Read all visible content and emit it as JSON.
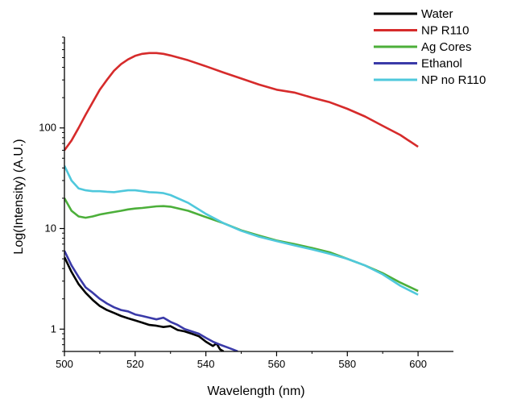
{
  "chart_data": {
    "type": "line",
    "title": "",
    "xlabel": "Wavelength (nm)",
    "ylabel": "Log(Intensity) (A.U.)",
    "xlim": [
      500,
      610
    ],
    "ylim": [
      0.6,
      800
    ],
    "yscale": "log",
    "grid": false,
    "legend_position": "top-right",
    "x_ticks": [
      500,
      520,
      540,
      560,
      580,
      600
    ],
    "y_ticks": [
      1,
      10,
      100
    ],
    "x_tick_labels": [
      "500",
      "520",
      "540",
      "560",
      "580",
      "600"
    ],
    "y_tick_labels": [
      "1",
      "10",
      "100"
    ],
    "series": [
      {
        "name": "Water",
        "color": "#000000",
        "x": [
          500,
          502,
          504,
          506,
          508,
          510,
          512,
          514,
          516,
          518,
          520,
          522,
          524,
          526,
          528,
          530,
          532,
          534,
          536,
          538,
          540,
          542,
          543,
          544,
          545
        ],
        "y": [
          5.2,
          3.7,
          2.8,
          2.3,
          1.95,
          1.7,
          1.55,
          1.45,
          1.35,
          1.28,
          1.22,
          1.16,
          1.1,
          1.08,
          1.05,
          1.07,
          0.98,
          0.95,
          0.9,
          0.85,
          0.75,
          0.68,
          0.72,
          0.63,
          0.6
        ]
      },
      {
        "name": "NP R110",
        "color": "#d62b2b",
        "x": [
          500,
          502,
          504,
          506,
          508,
          510,
          512,
          514,
          516,
          518,
          520,
          522,
          524,
          526,
          528,
          530,
          535,
          540,
          545,
          550,
          555,
          560,
          565,
          570,
          575,
          580,
          585,
          590,
          595,
          600
        ],
        "y": [
          60,
          75,
          100,
          135,
          180,
          240,
          300,
          370,
          430,
          480,
          520,
          545,
          555,
          555,
          545,
          525,
          470,
          410,
          355,
          310,
          270,
          240,
          225,
          200,
          180,
          155,
          130,
          105,
          85,
          65
        ]
      },
      {
        "name": "Ag Cores",
        "color": "#4caf3a",
        "x": [
          500,
          502,
          504,
          506,
          508,
          510,
          512,
          514,
          516,
          518,
          520,
          522,
          524,
          526,
          528,
          530,
          535,
          540,
          545,
          550,
          555,
          560,
          565,
          570,
          575,
          580,
          585,
          590,
          595,
          600
        ],
        "y": [
          20,
          15,
          13.2,
          12.8,
          13.2,
          13.8,
          14.2,
          14.6,
          15.0,
          15.5,
          15.8,
          16.0,
          16.3,
          16.6,
          16.7,
          16.5,
          15.0,
          13.0,
          11.3,
          9.6,
          8.5,
          7.6,
          7.0,
          6.4,
          5.8,
          5.0,
          4.3,
          3.6,
          2.9,
          2.4
        ]
      },
      {
        "name": "Ethanol",
        "color": "#3a3aa8",
        "x": [
          500,
          502,
          504,
          506,
          508,
          510,
          512,
          514,
          516,
          518,
          520,
          522,
          524,
          526,
          528,
          530,
          532,
          534,
          536,
          538,
          540,
          542,
          544,
          546,
          548,
          549
        ],
        "y": [
          6.0,
          4.3,
          3.3,
          2.6,
          2.3,
          2.0,
          1.8,
          1.65,
          1.55,
          1.5,
          1.4,
          1.35,
          1.3,
          1.25,
          1.3,
          1.18,
          1.1,
          1.0,
          0.95,
          0.9,
          0.82,
          0.75,
          0.7,
          0.66,
          0.62,
          0.6
        ]
      },
      {
        "name": "NP no R110",
        "color": "#4fc8dc",
        "x": [
          500,
          502,
          504,
          506,
          508,
          510,
          512,
          514,
          516,
          518,
          520,
          522,
          524,
          526,
          528,
          530,
          535,
          540,
          545,
          550,
          555,
          560,
          565,
          570,
          575,
          580,
          585,
          590,
          595,
          600
        ],
        "y": [
          42,
          30,
          25,
          24,
          23.5,
          23.5,
          23.2,
          23,
          23.5,
          24,
          24,
          23.5,
          23,
          22.8,
          22.5,
          21.5,
          18.0,
          14.0,
          11.3,
          9.5,
          8.3,
          7.5,
          6.8,
          6.2,
          5.6,
          5.0,
          4.3,
          3.5,
          2.7,
          2.2
        ]
      }
    ]
  }
}
